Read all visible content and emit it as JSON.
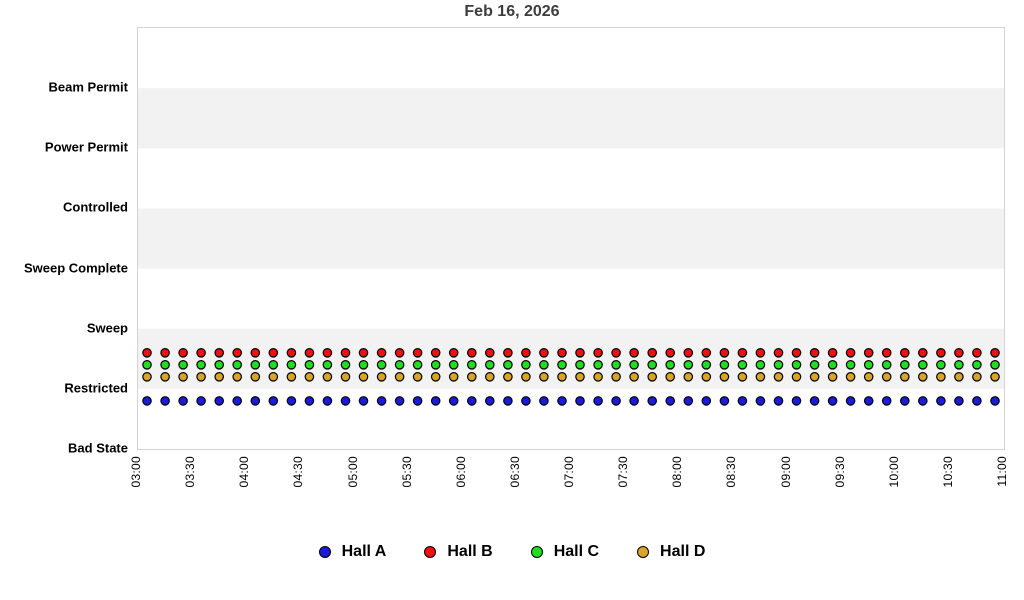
{
  "page": {
    "title": "Feb 16, 2026"
  },
  "colors": {
    "background": "#ffffff",
    "plot_border": "#d4d4d4",
    "title_text": "#3d3d3d",
    "axis_text": "#000000",
    "band_fill": "#f2f2f2"
  },
  "chart_data": {
    "type": "scatter",
    "title": "Feb 16, 2026",
    "xlabel": "",
    "ylabel": "",
    "grid": false,
    "legend_position": "bottom",
    "y_axis": {
      "levels_bottom_to_top": [
        "Bad State",
        "Restricted",
        "Sweep",
        "Sweep Complete",
        "Controlled",
        "Power Permit",
        "Beam Permit"
      ],
      "levels_total_span": 7
    },
    "x_axis": {
      "start": "03:00",
      "end": "11:00",
      "tick_labels": [
        "03:00",
        "03:30",
        "04:00",
        "04:30",
        "05:00",
        "05:30",
        "06:00",
        "06:30",
        "07:00",
        "07:30",
        "08:00",
        "08:30",
        "09:00",
        "09:30",
        "10:00",
        "10:30",
        "11:00"
      ]
    },
    "shaded_bands_between_levels": [
      [
        "Restricted",
        "Sweep"
      ],
      [
        "Sweep Complete",
        "Controlled"
      ],
      [
        "Power Permit",
        "Beam Permit"
      ]
    ],
    "sample_times": [
      "03:05",
      "03:15",
      "03:25",
      "03:35",
      "03:45",
      "03:55",
      "04:05",
      "04:15",
      "04:25",
      "04:35",
      "04:45",
      "04:55",
      "05:05",
      "05:15",
      "05:25",
      "05:35",
      "05:45",
      "05:55",
      "06:05",
      "06:15",
      "06:25",
      "06:35",
      "06:45",
      "06:55",
      "07:05",
      "07:15",
      "07:25",
      "07:35",
      "07:45",
      "07:55",
      "08:05",
      "08:15",
      "08:25",
      "08:35",
      "08:45",
      "08:55",
      "09:05",
      "09:15",
      "09:25",
      "09:35",
      "09:45",
      "09:55",
      "10:05",
      "10:15",
      "10:25",
      "10:35",
      "10:45",
      "10:55"
    ],
    "series": [
      {
        "name": "Hall A",
        "color": "#1b1bd8",
        "marker_offset": -0.2,
        "state_for_all_samples": "Restricted"
      },
      {
        "name": "Hall B",
        "color": "#ee1111",
        "marker_offset": 0.6,
        "state_for_all_samples": "Restricted"
      },
      {
        "name": "Hall C",
        "color": "#21dd21",
        "marker_offset": 0.4,
        "state_for_all_samples": "Restricted"
      },
      {
        "name": "Hall D",
        "color": "#d8a42c",
        "marker_offset": 0.2,
        "state_for_all_samples": "Restricted"
      }
    ]
  }
}
